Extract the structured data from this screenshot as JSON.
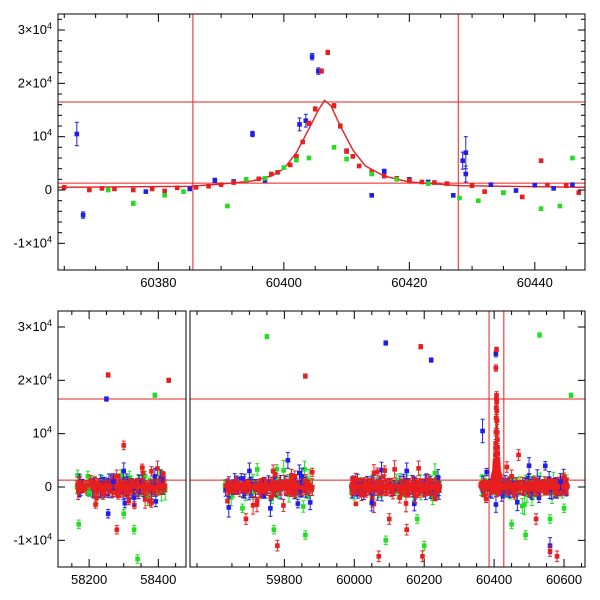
{
  "chart_data": [
    {
      "type": "scatter",
      "panel": "top",
      "xlim": [
        60364,
        60448
      ],
      "ylim": [
        -15000,
        33000
      ],
      "x_ticks": [
        {
          "value": 60380,
          "label": "60380"
        },
        {
          "value": 60400,
          "label": "60400"
        },
        {
          "value": 60420,
          "label": "60420"
        },
        {
          "value": 60440,
          "label": "60440"
        }
      ],
      "y_ticks": [
        {
          "value": -10000,
          "base": "-1×10",
          "exp": "4"
        },
        {
          "value": 0,
          "base": "0",
          "exp": ""
        },
        {
          "value": 10000,
          "base": "10",
          "exp": "4"
        },
        {
          "value": 20000,
          "base": "2×10",
          "exp": "4"
        },
        {
          "value": 30000,
          "base": "3×10",
          "exp": "4"
        }
      ],
      "vlines": [
        60385.5,
        60427.8
      ],
      "hlines": [
        16500,
        1300
      ],
      "colors": {
        "blue": "#1f1fe8",
        "red": "#e81f1f",
        "green": "#22dd22",
        "axis": "#000000",
        "line": "#e81f1f"
      },
      "model": {
        "peak_x": 60406.5,
        "peak_y": 16800,
        "baseline": 500,
        "points": [
          [
            60364,
            500
          ],
          [
            60385,
            700
          ],
          [
            60390,
            1100
          ],
          [
            60395,
            1700
          ],
          [
            60398,
            2600
          ],
          [
            60400,
            4000
          ],
          [
            60402,
            7000
          ],
          [
            60404,
            11500
          ],
          [
            60405.5,
            15000
          ],
          [
            60406.5,
            16800
          ],
          [
            60407.5,
            15800
          ],
          [
            60409,
            12000
          ],
          [
            60411,
            7500
          ],
          [
            60413,
            4500
          ],
          [
            60416,
            2600
          ],
          [
            60420,
            1500
          ],
          [
            60428,
            800
          ],
          [
            60448,
            500
          ]
        ]
      },
      "series": [
        {
          "color": "blue",
          "points": [
            [
              60367,
              10500,
              2200
            ],
            [
              60368,
              -4700,
              600
            ],
            [
              60378,
              -300,
              300
            ],
            [
              60385,
              200,
              300
            ],
            [
              60389,
              1800,
              400
            ],
            [
              60392,
              1600,
              300
            ],
            [
              60395,
              10500,
              500
            ],
            [
              60397,
              1800,
              300
            ],
            [
              60402.5,
              12300,
              1200
            ],
            [
              60403.5,
              13000,
              1200
            ],
            [
              60404.5,
              25000,
              600
            ],
            [
              60405.5,
              22300,
              600
            ],
            [
              60410,
              7300,
              400
            ],
            [
              60414,
              -1000,
              300
            ],
            [
              60416,
              3500,
              400
            ],
            [
              60420,
              2000,
              300
            ],
            [
              60423,
              1500,
              300
            ],
            [
              60427,
              -1000,
              300
            ],
            [
              60428.5,
              5500,
              1600
            ],
            [
              60429,
              7000,
              3000
            ],
            [
              60429,
              3000,
              1500
            ],
            [
              60433,
              1000,
              300
            ],
            [
              60437,
              -100,
              300
            ],
            [
              60440,
              900,
              300
            ],
            [
              60443,
              300,
              300
            ],
            [
              60446,
              1000,
              300
            ]
          ]
        },
        {
          "color": "red",
          "points": [
            [
              60365,
              500,
              300
            ],
            [
              60369,
              0,
              300
            ],
            [
              60371,
              300,
              300
            ],
            [
              60373,
              200,
              300
            ],
            [
              60376,
              0,
              300
            ],
            [
              60379,
              200,
              300
            ],
            [
              60381,
              -200,
              300
            ],
            [
              60383,
              400,
              300
            ],
            [
              60386,
              500,
              300
            ],
            [
              60388,
              700,
              300
            ],
            [
              60390,
              1000,
              300
            ],
            [
              60392,
              1400,
              300
            ],
            [
              60394,
              1800,
              300
            ],
            [
              60396,
              2100,
              300
            ],
            [
              60398,
              3000,
              300
            ],
            [
              60399,
              3300,
              300
            ],
            [
              60401,
              4700,
              300
            ],
            [
              60402,
              6300,
              300
            ],
            [
              60403,
              9000,
              300
            ],
            [
              60404,
              12500,
              400
            ],
            [
              60405,
              15200,
              400
            ],
            [
              60406,
              22300,
              400
            ],
            [
              60407,
              25800,
              400
            ],
            [
              60408,
              15800,
              400
            ],
            [
              60409,
              12000,
              400
            ],
            [
              60410,
              7300,
              400
            ],
            [
              60411,
              6300,
              300
            ],
            [
              60412,
              4500,
              300
            ],
            [
              60414,
              3400,
              300
            ],
            [
              60416,
              2600,
              300
            ],
            [
              60418,
              2200,
              300
            ],
            [
              60420,
              1800,
              300
            ],
            [
              60422,
              1500,
              300
            ],
            [
              60424,
              1400,
              300
            ],
            [
              60426,
              1200,
              300
            ],
            [
              60430,
              800,
              300
            ],
            [
              60432,
              -300,
              300
            ],
            [
              60435,
              -500,
              300
            ],
            [
              60438,
              -1300,
              300
            ],
            [
              60441,
              5500,
              300
            ],
            [
              60442,
              900,
              300
            ],
            [
              60445,
              800,
              300
            ],
            [
              60447,
              -500,
              300
            ]
          ]
        },
        {
          "color": "green",
          "points": [
            [
              60372,
              0,
              300
            ],
            [
              60376,
              -2500,
              400
            ],
            [
              60381,
              -1000,
              300
            ],
            [
              60384,
              -300,
              300
            ],
            [
              60391,
              -3000,
              300
            ],
            [
              60394,
              2000,
              300
            ],
            [
              60397,
              2200,
              300
            ],
            [
              60400,
              4200,
              300
            ],
            [
              60402,
              5600,
              300
            ],
            [
              60404,
              6000,
              300
            ],
            [
              60408,
              8000,
              300
            ],
            [
              60410,
              5800,
              300
            ],
            [
              60414,
              3000,
              300
            ],
            [
              60418,
              2000,
              300
            ],
            [
              60423,
              1200,
              300
            ],
            [
              60428,
              -1500,
              300
            ],
            [
              60431,
              -2000,
              300
            ],
            [
              60435,
              -500,
              300
            ],
            [
              60441,
              -3500,
              300
            ],
            [
              60444,
              -3000,
              300
            ],
            [
              60446,
              6000,
              300
            ]
          ]
        }
      ]
    },
    {
      "type": "scatter",
      "panel": "bottom",
      "broken_x_axis": true,
      "segments": [
        {
          "xlim": [
            58110,
            58480
          ]
        },
        {
          "xlim": [
            59530,
            60660
          ]
        }
      ],
      "ylim": [
        -15000,
        33000
      ],
      "x_ticks": [
        {
          "value": 58200,
          "label": "58200",
          "segment": 0
        },
        {
          "value": 58400,
          "label": "58400",
          "segment": 0
        },
        {
          "value": 59800,
          "label": "59800",
          "segment": 1
        },
        {
          "value": 60000,
          "label": "60000",
          "segment": 1
        },
        {
          "value": 60200,
          "label": "60200",
          "segment": 1
        },
        {
          "value": 60400,
          "label": "60400",
          "segment": 1
        },
        {
          "value": 60600,
          "label": "60600",
          "segment": 1
        }
      ],
      "y_ticks": [
        {
          "value": -10000,
          "base": "-1×10",
          "exp": "4"
        },
        {
          "value": 0,
          "base": "0",
          "exp": ""
        },
        {
          "value": 10000,
          "base": "10",
          "exp": "4"
        },
        {
          "value": 20000,
          "base": "2×10",
          "exp": "4"
        },
        {
          "value": 30000,
          "base": "3×10",
          "exp": "4"
        }
      ],
      "vlines": [
        60385.5,
        60427.8
      ],
      "hlines": [
        16500,
        1300
      ],
      "seasons": [
        {
          "segment": 0,
          "x_range": [
            58165,
            58420
          ]
        },
        {
          "segment": 1,
          "x_range": [
            59630,
            59880
          ]
        },
        {
          "segment": 1,
          "x_range": [
            59990,
            60245
          ]
        },
        {
          "segment": 1,
          "x_range": [
            60360,
            60610
          ]
        }
      ],
      "spike": {
        "segment": 1,
        "x": 60407,
        "peak_y": 16800,
        "half_width": 5
      },
      "series": [
        {
          "color": "blue",
          "points": [
            [
              58250,
              16500,
              400
            ],
            [
              58255,
              -5000,
              800
            ],
            [
              58270,
              1000,
              1500
            ],
            [
              58300,
              3000,
              1500
            ],
            [
              58330,
              -2000,
              1500
            ],
            [
              58390,
              2000,
              1500
            ],
            [
              59700,
              3000,
              1500
            ],
            [
              59760,
              -4000,
              1500
            ],
            [
              59810,
              5000,
              1500
            ],
            [
              59850,
              2000,
              1500
            ],
            [
              60090,
              27000,
              400
            ],
            [
              60220,
              23800,
              400
            ],
            [
              60050,
              -3000,
              1500
            ],
            [
              60150,
              3000,
              1500
            ],
            [
              60367,
              10500,
              2200
            ],
            [
              60405,
              25000,
              600
            ],
            [
              60500,
              4000,
              1500
            ],
            [
              60560,
              -11000,
              1500
            ],
            [
              60590,
              1000,
              1500
            ]
          ]
        },
        {
          "color": "red",
          "points": [
            [
              58255,
              21000,
              400
            ],
            [
              58280,
              -8000,
              800
            ],
            [
              58300,
              7800,
              800
            ],
            [
              58380,
              -3000,
              800
            ],
            [
              58430,
              20000,
              400
            ],
            [
              59690,
              -6000,
              1000
            ],
            [
              59780,
              -11000,
              1000
            ],
            [
              59830,
              2000,
              1000
            ],
            [
              59860,
              20800,
              400
            ],
            [
              60070,
              -13000,
              1000
            ],
            [
              60100,
              -6000,
              1000
            ],
            [
              60130,
              -2000,
              1000
            ],
            [
              60150,
              -8000,
              1000
            ],
            [
              60190,
              26300,
              400
            ],
            [
              60195,
              -13000,
              1000
            ],
            [
              60405,
              22300,
              600
            ],
            [
              60407,
              25800,
              400
            ],
            [
              60470,
              6000,
              1000
            ],
            [
              60520,
              -6000,
              1000
            ],
            [
              60560,
              -12000,
              1000
            ],
            [
              60580,
              -13000,
              1000
            ]
          ]
        },
        {
          "color": "green",
          "points": [
            [
              58170,
              -7000,
              800
            ],
            [
              58200,
              -1000,
              800
            ],
            [
              58300,
              -5000,
              800
            ],
            [
              58340,
              -13500,
              800
            ],
            [
              58390,
              17200,
              400
            ],
            [
              58330,
              -8000,
              800
            ],
            [
              59680,
              -4000,
              800
            ],
            [
              59750,
              28200,
              400
            ],
            [
              59770,
              -8000,
              800
            ],
            [
              59860,
              -9000,
              800
            ],
            [
              60090,
              -10000,
              800
            ],
            [
              60180,
              -6000,
              800
            ],
            [
              60200,
              -11000,
              800
            ],
            [
              60450,
              -7000,
              800
            ],
            [
              60490,
              -9000,
              800
            ],
            [
              60530,
              28500,
              400
            ],
            [
              60560,
              -6000,
              800
            ],
            [
              60600,
              -4000,
              800
            ],
            [
              60620,
              17200,
              400
            ]
          ]
        }
      ]
    }
  ]
}
